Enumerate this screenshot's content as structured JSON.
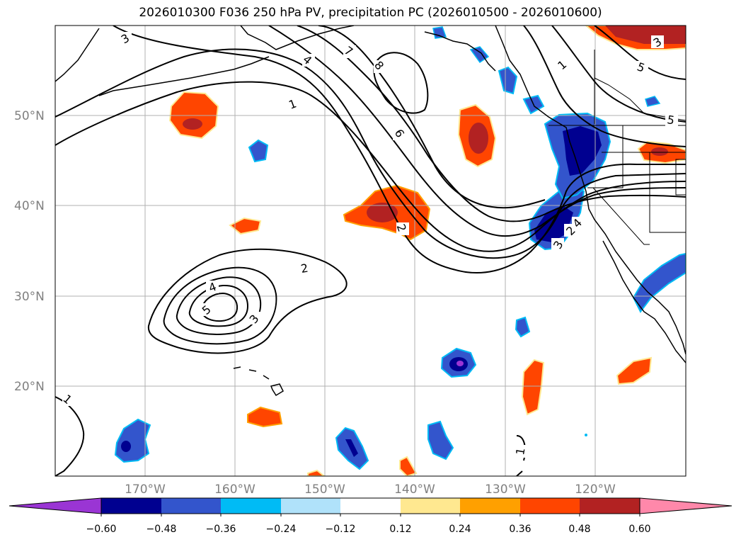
{
  "title": "2026010300 F036 250 hPa PV, precipitation PC (2026010500 - 2026010600)",
  "lat_labels": [
    "20°N",
    "30°N",
    "40°N",
    "50°N"
  ],
  "lon_labels": [
    "170°W",
    "160°W",
    "150°W",
    "140°W",
    "130°W",
    "120°W"
  ],
  "contour_labels": [
    "1",
    "2",
    "3",
    "4",
    "5",
    "6",
    "7",
    "8",
    "1",
    "2",
    "3",
    "4",
    "5",
    "1",
    "2",
    "3",
    "4",
    "5",
    "3",
    "1"
  ],
  "colorbar": {
    "ticks": [
      "−0.60",
      "−0.48",
      "−0.36",
      "−0.24",
      "−0.12",
      "0.12",
      "0.24",
      "0.36",
      "0.48",
      "0.60"
    ],
    "colors": [
      "#9a35d4",
      "#000090",
      "#3355cc",
      "#00bbf5",
      "#b0e2fa",
      "#ffffff",
      "#ffe890",
      "#ffa000",
      "#ff4500",
      "#b22222",
      "#ff88aa"
    ]
  }
}
